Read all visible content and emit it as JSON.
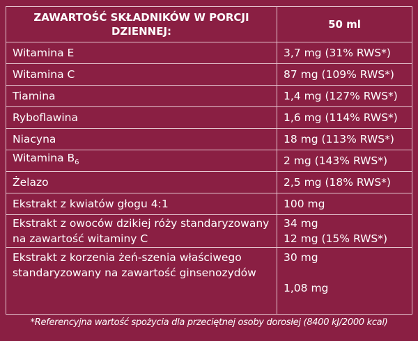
{
  "header": {
    "col1": "ZAWARTOŚĆ SKŁADNIKÓW W PORCJI DZIENNEJ:",
    "col2": "50 ml"
  },
  "rows": [
    {
      "name": "Witamina E",
      "value": "3,7 mg (31% RWS*)"
    },
    {
      "name": "Witamina C",
      "value": "87 mg (109% RWS*)"
    },
    {
      "name": "Tiamina",
      "value": "1,4 mg (127% RWS*)"
    },
    {
      "name": "Ryboflawina",
      "value": "1,6 mg (114% RWS*)"
    },
    {
      "name": "Niacyna",
      "value": "18 mg (113% RWS*)"
    },
    {
      "name": "Witamina B",
      "sub": "6",
      "value": "2 mg (143% RWS*)"
    },
    {
      "name": "Żelazo",
      "value": "2,5 mg (18% RWS*)"
    },
    {
      "name": "Ekstrakt z kwiatów głogu 4:1",
      "value": "100 mg"
    },
    {
      "name": "Ekstrakt z owoców dzikiej róży standaryzowany na zawartość witaminy C",
      "value": "34 mg",
      "value2": "12 mg (15% RWS*)"
    },
    {
      "name": "Ekstrakt z korzenia żeń-szenia właściwego standaryzowany na zawartość ginsenozydów",
      "value": "30 mg",
      "value2": "1,08 mg"
    }
  ],
  "footnote": "*Referencyjna wartość spożycia dla przeciętnej osoby dorosłej (8400 kJ/2000 kcal)"
}
